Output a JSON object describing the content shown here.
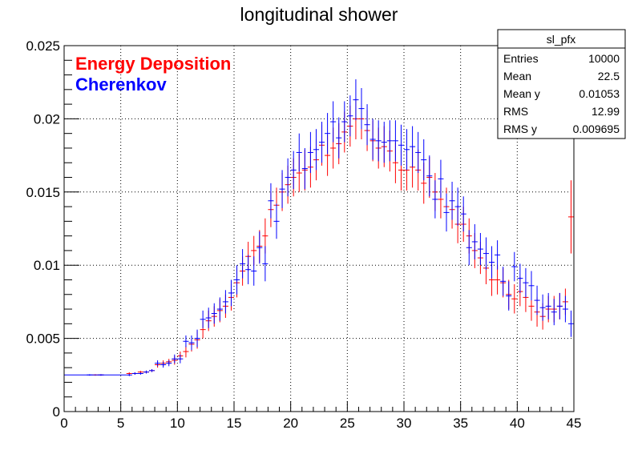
{
  "chart_data": {
    "type": "scatter",
    "title": "longitudinal shower",
    "xlabel": "",
    "ylabel": "",
    "xlim": [
      0,
      45
    ],
    "ylim": [
      0,
      0.025
    ],
    "x_ticks": [
      "0",
      "5",
      "10",
      "15",
      "20",
      "25",
      "30",
      "35",
      "40",
      "45"
    ],
    "y_ticks": [
      "0",
      "0.005",
      "0.01",
      "0.015",
      "0.02",
      "0.025"
    ],
    "grid": true,
    "legend_position": "top-left",
    "bin_width": 0.5,
    "series": [
      {
        "name": "Energy Deposition",
        "color": "#ff0000",
        "x": [
          2.75,
          3.25,
          5.75,
          6.25,
          6.75,
          7.25,
          7.75,
          8.25,
          8.75,
          9.25,
          9.75,
          10.25,
          10.75,
          11.25,
          11.75,
          12.25,
          12.75,
          13.25,
          13.75,
          14.25,
          14.75,
          15.25,
          15.75,
          16.25,
          16.75,
          17.25,
          17.75,
          18.25,
          18.75,
          19.25,
          19.75,
          20.25,
          20.75,
          21.25,
          21.75,
          22.25,
          22.75,
          23.25,
          23.75,
          24.25,
          24.75,
          25.25,
          25.75,
          26.25,
          26.75,
          27.25,
          27.75,
          28.25,
          28.75,
          29.25,
          29.75,
          30.25,
          30.75,
          31.25,
          31.75,
          32.25,
          32.75,
          33.25,
          33.75,
          34.25,
          34.75,
          35.25,
          35.75,
          36.25,
          36.75,
          37.25,
          37.75,
          38.25,
          38.75,
          39.25,
          39.75,
          40.25,
          40.75,
          41.25,
          41.75,
          42.25,
          42.75,
          43.25,
          43.75,
          44.25,
          44.75
        ],
        "y": [
          0.0025,
          0.0025,
          0.0026,
          0.0026,
          0.0027,
          0.0027,
          0.0028,
          0.0032,
          0.0033,
          0.0034,
          0.0035,
          0.0038,
          0.0041,
          0.0046,
          0.0049,
          0.0056,
          0.0062,
          0.0065,
          0.0069,
          0.0072,
          0.0078,
          0.0088,
          0.0096,
          0.0106,
          0.011,
          0.0113,
          0.012,
          0.0138,
          0.0141,
          0.015,
          0.0155,
          0.016,
          0.0163,
          0.0165,
          0.0167,
          0.0172,
          0.0182,
          0.0175,
          0.018,
          0.0183,
          0.0191,
          0.0195,
          0.02,
          0.02,
          0.0192,
          0.0185,
          0.018,
          0.0181,
          0.0178,
          0.017,
          0.0165,
          0.0165,
          0.0167,
          0.0165,
          0.0156,
          0.016,
          0.015,
          0.0145,
          0.014,
          0.0138,
          0.0128,
          0.0128,
          0.012,
          0.011,
          0.0105,
          0.0098,
          0.009,
          0.009,
          0.0088,
          0.008,
          0.0077,
          0.0082,
          0.0078,
          0.0072,
          0.0068,
          0.0065,
          0.007,
          0.007,
          0.0072,
          0.0075,
          0.0133
        ],
        "err": [
          5e-05,
          5e-05,
          8e-05,
          8e-05,
          8e-05,
          0.0001,
          0.0001,
          0.0002,
          0.0002,
          0.0002,
          0.0003,
          0.0003,
          0.0004,
          0.0005,
          0.0006,
          0.0006,
          0.0007,
          0.0007,
          0.0008,
          0.0008,
          0.0009,
          0.001,
          0.001,
          0.001,
          0.001,
          0.0011,
          0.0012,
          0.0012,
          0.0012,
          0.0013,
          0.0013,
          0.0013,
          0.0013,
          0.0014,
          0.0014,
          0.0014,
          0.0014,
          0.0014,
          0.0014,
          0.0014,
          0.0014,
          0.0014,
          0.0014,
          0.0014,
          0.0014,
          0.0014,
          0.0014,
          0.0014,
          0.0014,
          0.0014,
          0.0014,
          0.0014,
          0.0014,
          0.0014,
          0.0014,
          0.0014,
          0.0013,
          0.0013,
          0.0013,
          0.0013,
          0.0013,
          0.0012,
          0.0012,
          0.0012,
          0.0011,
          0.0011,
          0.0011,
          0.001,
          0.001,
          0.001,
          0.001,
          0.001,
          0.001,
          0.001,
          0.001,
          0.0009,
          0.0009,
          0.0009,
          0.0009,
          0.0009,
          0.0025
        ]
      },
      {
        "name": "Cherenkov",
        "color": "#0000ff",
        "x": [
          2.25,
          3.25,
          5.75,
          6.25,
          6.75,
          7.25,
          7.75,
          8.25,
          8.75,
          9.25,
          9.75,
          10.25,
          10.75,
          11.25,
          11.75,
          12.25,
          12.75,
          13.25,
          13.75,
          14.25,
          14.75,
          15.25,
          15.75,
          16.25,
          16.75,
          17.25,
          17.75,
          18.25,
          18.75,
          19.25,
          19.75,
          20.25,
          20.75,
          21.25,
          21.75,
          22.25,
          22.75,
          23.25,
          23.75,
          24.25,
          24.75,
          25.25,
          25.75,
          26.25,
          26.75,
          27.25,
          27.75,
          28.25,
          28.75,
          29.25,
          29.75,
          30.25,
          30.75,
          31.25,
          31.75,
          32.25,
          32.75,
          33.25,
          33.75,
          34.25,
          34.75,
          35.25,
          35.75,
          36.25,
          36.75,
          37.25,
          37.75,
          38.25,
          38.75,
          39.25,
          39.75,
          40.25,
          40.75,
          41.25,
          41.75,
          42.25,
          42.75,
          43.25,
          43.75,
          44.25,
          44.75
        ],
        "y": [
          0.0025,
          0.0025,
          0.0025,
          0.0026,
          0.0026,
          0.0027,
          0.0028,
          0.0033,
          0.0032,
          0.0033,
          0.0036,
          0.0036,
          0.0048,
          0.0047,
          0.005,
          0.0063,
          0.0064,
          0.0067,
          0.007,
          0.0075,
          0.0081,
          0.009,
          0.0101,
          0.0097,
          0.0096,
          0.0112,
          0.0101,
          0.0144,
          0.013,
          0.0152,
          0.016,
          0.0165,
          0.0177,
          0.0166,
          0.0177,
          0.0179,
          0.0184,
          0.019,
          0.0198,
          0.0187,
          0.0198,
          0.0202,
          0.0213,
          0.0207,
          0.0196,
          0.0186,
          0.0185,
          0.0184,
          0.0185,
          0.0185,
          0.0182,
          0.0179,
          0.0181,
          0.0177,
          0.0172,
          0.0161,
          0.0145,
          0.0159,
          0.0136,
          0.0144,
          0.014,
          0.0135,
          0.0112,
          0.0116,
          0.0111,
          0.0108,
          0.0102,
          0.0107,
          0.0089,
          0.0079,
          0.0099,
          0.0091,
          0.0088,
          0.0086,
          0.0076,
          0.0071,
          0.0072,
          0.0068,
          0.0072,
          0.007,
          0.006
        ],
        "err": [
          5e-05,
          5e-05,
          8e-05,
          8e-05,
          8e-05,
          0.0001,
          0.0001,
          0.0002,
          0.0002,
          0.0002,
          0.0003,
          0.0003,
          0.0004,
          0.0005,
          0.0006,
          0.0006,
          0.0007,
          0.0007,
          0.0008,
          0.0008,
          0.0009,
          0.001,
          0.001,
          0.001,
          0.001,
          0.0011,
          0.0012,
          0.0012,
          0.0012,
          0.0013,
          0.0013,
          0.0013,
          0.0013,
          0.0014,
          0.0014,
          0.0014,
          0.0014,
          0.0014,
          0.0014,
          0.0014,
          0.0014,
          0.0014,
          0.0014,
          0.0014,
          0.0014,
          0.0014,
          0.0014,
          0.0014,
          0.0014,
          0.0014,
          0.0014,
          0.0014,
          0.0014,
          0.0014,
          0.0014,
          0.0014,
          0.0013,
          0.0013,
          0.0013,
          0.0013,
          0.0013,
          0.0012,
          0.0012,
          0.0012,
          0.0011,
          0.0011,
          0.0011,
          0.001,
          0.001,
          0.001,
          0.001,
          0.001,
          0.001,
          0.001,
          0.001,
          0.0009,
          0.0009,
          0.0009,
          0.0009,
          0.0009,
          0.0009
        ]
      }
    ]
  },
  "stats_box": {
    "title": "sl_pfx",
    "rows": [
      {
        "label": "Entries",
        "value": "10000"
      },
      {
        "label": "Mean",
        "value": "22.5"
      },
      {
        "label": "Mean y",
        "value": "0.01053"
      },
      {
        "label": "RMS",
        "value": "12.99"
      },
      {
        "label": "RMS y",
        "value": "0.009695"
      }
    ]
  }
}
